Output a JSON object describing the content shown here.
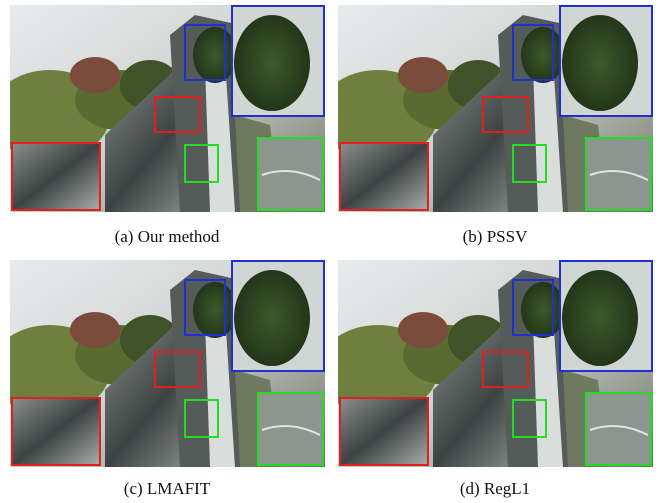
{
  "panels": [
    {
      "caption": "(a) Our method"
    },
    {
      "caption": "(b) PSSV"
    },
    {
      "caption": "(c) LMAFIT"
    },
    {
      "caption": "(d) RegL1"
    }
  ]
}
